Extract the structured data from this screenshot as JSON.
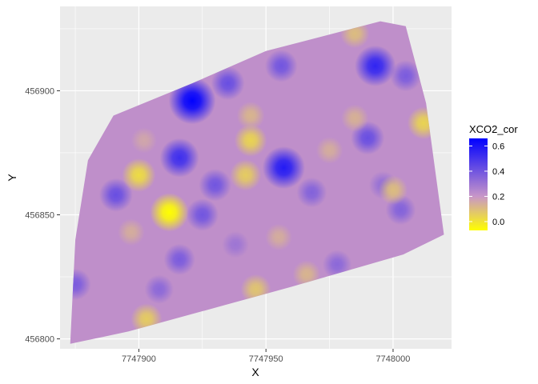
{
  "chart_data": {
    "type": "heatmap",
    "title": "",
    "xlabel": "X",
    "ylabel": "Y",
    "xlim": [
      7747869,
      7748023
    ],
    "ylim": [
      456796,
      456934
    ],
    "x_ticks": [
      7747900,
      7747950,
      7748000
    ],
    "x_tick_labels": [
      "7747900",
      "7747950",
      "7748000"
    ],
    "y_ticks": [
      456800,
      456850,
      456900
    ],
    "y_tick_labels": [
      "456800",
      "456850",
      "456900"
    ],
    "grid": true,
    "legend": {
      "title": "XCO2_cor",
      "placement": "right",
      "breaks": [
        0.0,
        0.2,
        0.4,
        0.6
      ],
      "break_labels": [
        "0.0",
        "0.2",
        "0.4",
        "0.6"
      ],
      "limits": [
        -0.07,
        0.66
      ],
      "colors": {
        "low": "#FFFF00",
        "mid": "#C896C8",
        "high": "#0000FF"
      },
      "midpoint": 0.2
    },
    "region_polygon": [
      [
        7747873,
        456798
      ],
      [
        7747896,
        456803
      ],
      [
        7747960,
        456821
      ],
      [
        7748004,
        456834
      ],
      [
        7748020,
        456842
      ],
      [
        7748013,
        456895
      ],
      [
        7748005,
        456926
      ],
      [
        7747995,
        456928
      ],
      [
        7747950,
        456916
      ],
      [
        7747921,
        456903
      ],
      [
        7747890,
        456890
      ],
      [
        7747880,
        456872
      ],
      [
        7747875,
        456840
      ]
    ],
    "base_value": 0.22,
    "hotspots": [
      {
        "x": 7747921,
        "y": 456896,
        "value": 0.66
      },
      {
        "x": 7747957,
        "y": 456869,
        "value": 0.58
      },
      {
        "x": 7747993,
        "y": 456910,
        "value": 0.55
      },
      {
        "x": 7747916,
        "y": 456873,
        "value": 0.52
      },
      {
        "x": 7747935,
        "y": 456903,
        "value": 0.42
      },
      {
        "x": 7747956,
        "y": 456910,
        "value": 0.4
      },
      {
        "x": 7747990,
        "y": 456881,
        "value": 0.42
      },
      {
        "x": 7748005,
        "y": 456906,
        "value": 0.38
      },
      {
        "x": 7747891,
        "y": 456858,
        "value": 0.42
      },
      {
        "x": 7747930,
        "y": 456862,
        "value": 0.4
      },
      {
        "x": 7747925,
        "y": 456850,
        "value": 0.4
      },
      {
        "x": 7747968,
        "y": 456859,
        "value": 0.36
      },
      {
        "x": 7748003,
        "y": 456852,
        "value": 0.36
      },
      {
        "x": 7747875,
        "y": 456822,
        "value": 0.38
      },
      {
        "x": 7747916,
        "y": 456832,
        "value": 0.38
      },
      {
        "x": 7747908,
        "y": 456820,
        "value": 0.34
      },
      {
        "x": 7747978,
        "y": 456830,
        "value": 0.34
      },
      {
        "x": 7747938,
        "y": 456838,
        "value": 0.3
      },
      {
        "x": 7747996,
        "y": 456862,
        "value": 0.32
      },
      {
        "x": 7747912,
        "y": 456851,
        "value": -0.07
      },
      {
        "x": 7747900,
        "y": 456866,
        "value": 0.02
      },
      {
        "x": 7747944,
        "y": 456880,
        "value": 0.04
      },
      {
        "x": 7748012,
        "y": 456887,
        "value": 0.04
      },
      {
        "x": 7747942,
        "y": 456866,
        "value": 0.06
      },
      {
        "x": 7747903,
        "y": 456808,
        "value": 0.06
      },
      {
        "x": 7747946,
        "y": 456820,
        "value": 0.08
      },
      {
        "x": 7747985,
        "y": 456923,
        "value": 0.1
      },
      {
        "x": 7747966,
        "y": 456826,
        "value": 0.12
      },
      {
        "x": 7747944,
        "y": 456890,
        "value": 0.12
      },
      {
        "x": 7747985,
        "y": 456889,
        "value": 0.13
      },
      {
        "x": 7747975,
        "y": 456876,
        "value": 0.14
      },
      {
        "x": 7747955,
        "y": 456841,
        "value": 0.14
      },
      {
        "x": 7747897,
        "y": 456843,
        "value": 0.14
      },
      {
        "x": 7747902,
        "y": 456880,
        "value": 0.16
      },
      {
        "x": 7748000,
        "y": 456860,
        "value": 0.1
      }
    ]
  }
}
